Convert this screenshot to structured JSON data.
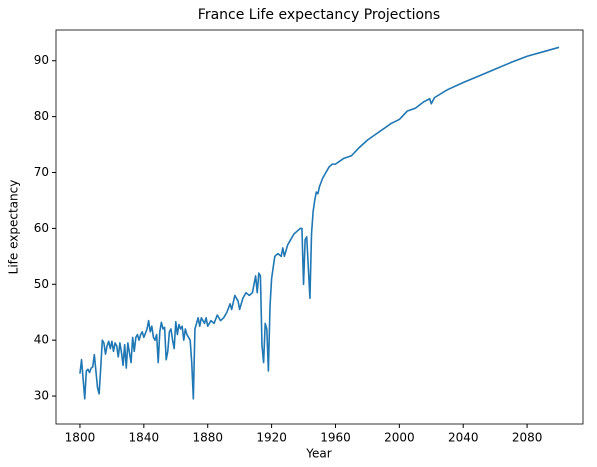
{
  "chart_data": {
    "type": "line",
    "title": "France Life expectancy Projections",
    "xlabel": "Year",
    "ylabel": "Life expectancy",
    "color": "#1f77b4",
    "x": [
      1800,
      1801,
      1802,
      1803,
      1804,
      1805,
      1806,
      1807,
      1808,
      1809,
      1810,
      1811,
      1812,
      1813,
      1814,
      1815,
      1816,
      1817,
      1818,
      1819,
      1820,
      1821,
      1822,
      1823,
      1824,
      1825,
      1826,
      1827,
      1828,
      1829,
      1830,
      1832,
      1833,
      1834,
      1835,
      1836,
      1837,
      1838,
      1839,
      1840,
      1842,
      1843,
      1844,
      1845,
      1846,
      1847,
      1848,
      1849,
      1850,
      1851,
      1852,
      1853,
      1854,
      1855,
      1856,
      1857,
      1858,
      1859,
      1860,
      1861,
      1862,
      1863,
      1864,
      1865,
      1866,
      1867,
      1868,
      1869,
      1870,
      1871,
      1872,
      1873,
      1874,
      1875,
      1876,
      1877,
      1878,
      1879,
      1880,
      1882,
      1884,
      1886,
      1888,
      1890,
      1892,
      1894,
      1895,
      1897,
      1899,
      1900,
      1902,
      1904,
      1906,
      1908,
      1910,
      1911,
      1912,
      1913,
      1914,
      1915,
      1916,
      1917,
      1918,
      1919,
      1920,
      1921,
      1922,
      1924,
      1926,
      1927,
      1928,
      1930,
      1932,
      1934,
      1936,
      1938,
      1939,
      1940,
      1941,
      1942,
      1943,
      1944,
      1945,
      1946,
      1947,
      1948,
      1949,
      1950,
      1952,
      1954,
      1956,
      1958,
      1960,
      1965,
      1970,
      1975,
      1980,
      1985,
      1990,
      1995,
      2000,
      2005,
      2010,
      2015,
      2019,
      2020,
      2022,
      2030,
      2040,
      2050,
      2060,
      2070,
      2080,
      2090,
      2100
    ],
    "values": [
      34,
      36.5,
      33,
      29.5,
      34.5,
      34.8,
      34.2,
      35,
      35.2,
      37.4,
      34.5,
      31.5,
      30.4,
      35,
      40,
      39.5,
      37.5,
      39,
      39.8,
      38.5,
      39.8,
      38,
      39.5,
      39,
      37,
      39.5,
      37.8,
      35.5,
      39.2,
      35,
      39.5,
      36,
      40.5,
      38,
      40.5,
      41,
      40,
      41,
      41.5,
      40.5,
      42,
      43.5,
      41.5,
      42.5,
      40.5,
      40,
      41,
      36,
      41.5,
      43.2,
      42,
      42.3,
      36.5,
      38,
      41.5,
      42,
      40,
      38.5,
      43.3,
      41,
      42.8,
      42,
      42.5,
      40,
      42,
      41,
      40.5,
      40,
      36,
      29.5,
      42,
      43,
      44,
      42.5,
      44,
      43.5,
      43,
      44,
      42.5,
      43.5,
      43,
      44.5,
      43.5,
      44,
      45,
      46.5,
      45.5,
      48,
      47,
      45.5,
      47.5,
      48.5,
      48,
      48.5,
      51.5,
      48.5,
      52,
      51.5,
      39,
      36,
      43,
      42,
      34.5,
      46,
      51,
      53,
      55,
      55.5,
      55,
      56.5,
      55,
      57,
      58,
      59,
      59.5,
      60,
      60,
      50,
      58,
      58.5,
      53,
      47.5,
      59,
      63,
      65,
      66.5,
      66.2,
      67.5,
      69,
      70,
      71,
      71.5,
      71.5,
      72.5,
      73,
      74.5,
      75.8,
      76.8,
      77.8,
      78.8,
      79.5,
      81,
      81.5,
      82.6,
      83.2,
      82.3,
      83.4,
      84.8,
      86.1,
      87.3,
      88.5,
      89.7,
      90.8,
      91.6,
      92.4
    ],
    "xlim": [
      1785,
      2115
    ],
    "xticks": [
      1800,
      1840,
      1880,
      1920,
      1960,
      2000,
      2040,
      2080
    ],
    "ylim": [
      25,
      95.5
    ],
    "yticks": [
      30,
      40,
      50,
      60,
      70,
      80,
      90
    ],
    "grid": false
  }
}
